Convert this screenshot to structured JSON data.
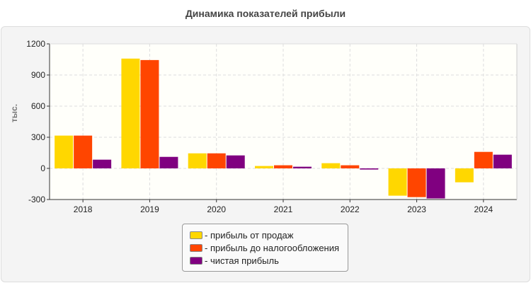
{
  "chart_data": {
    "type": "bar",
    "title": "Динамика показателей прибыли",
    "ylabel": "тыс.",
    "xlabel": "",
    "ylim": [
      -300,
      1200
    ],
    "yticks": [
      -300,
      0,
      300,
      600,
      900,
      1200
    ],
    "categories": [
      "2018",
      "2019",
      "2020",
      "2021",
      "2022",
      "2023",
      "2024"
    ],
    "grid": true,
    "legend_position": "bottom",
    "series": [
      {
        "name": "- прибыль от продаж",
        "color": "#FFD700",
        "values": [
          316,
          1058,
          145,
          23,
          50,
          -263,
          -134
        ]
      },
      {
        "name": "- прибыль до налогообложения",
        "color": "#FF4500",
        "values": [
          316,
          1044,
          145,
          30,
          30,
          -277,
          159
        ]
      },
      {
        "name": "- чистая прибыль",
        "color": "#800080",
        "values": [
          84,
          111,
          125,
          16,
          -11,
          -290,
          132
        ]
      }
    ]
  }
}
